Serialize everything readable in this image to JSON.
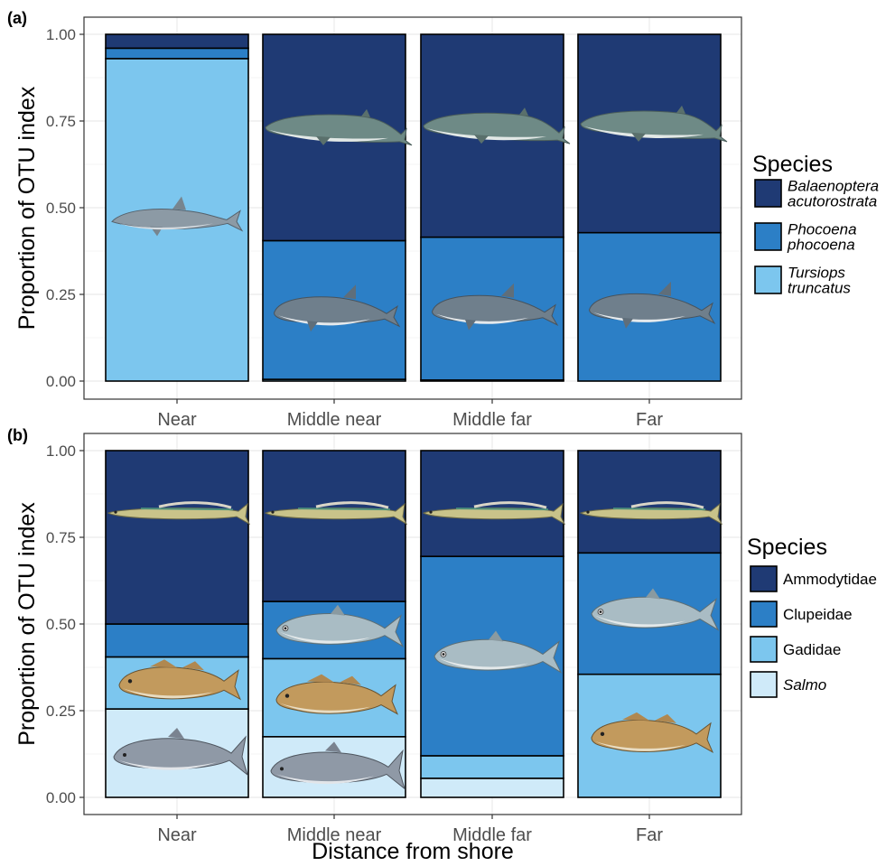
{
  "xlabel": "Distance from shore",
  "colors": {
    "dark": "#1f3a74",
    "mid": "#2c7fc6",
    "light": "#7cc6ee",
    "pale": "#cfeaf9",
    "panel_border": "#333333",
    "grid": "#ebebeb"
  },
  "chart_data": [
    {
      "type": "bar",
      "stacked": true,
      "panel_tag": "(a)",
      "title": "",
      "xlabel": "",
      "ylabel": "Proportion of OTU index",
      "ylim": [
        0,
        1
      ],
      "yticks": [
        "0.00",
        "0.25",
        "0.50",
        "0.75",
        "1.00"
      ],
      "categories": [
        "Near",
        "Middle near",
        "Middle far",
        "Far"
      ],
      "legend_title": "Species",
      "legend_position": "right",
      "series": [
        {
          "name_lines": [
            "Tursiops",
            "truncatus"
          ],
          "italic": true,
          "color": "#7cc6ee",
          "values": [
            0.93,
            0.005,
            0.003,
            0.0
          ]
        },
        {
          "name_lines": [
            "Phocoena",
            "phocoena"
          ],
          "italic": true,
          "color": "#2c7fc6",
          "values": [
            0.03,
            0.4,
            0.412,
            0.428
          ]
        },
        {
          "name_lines": [
            "Balaenoptera",
            "acutorostrata"
          ],
          "italic": true,
          "color": "#1f3a74",
          "values": [
            0.04,
            0.595,
            0.585,
            0.572
          ]
        }
      ],
      "illustrations": [
        {
          "kind": "dolphin-icon",
          "category": 0,
          "series": 0
        },
        {
          "kind": "whale-icon",
          "category": 1,
          "series": 2
        },
        {
          "kind": "whale-icon",
          "category": 2,
          "series": 2
        },
        {
          "kind": "whale-icon",
          "category": 3,
          "series": 2
        },
        {
          "kind": "porpoise-icon",
          "category": 1,
          "series": 1
        },
        {
          "kind": "porpoise-icon",
          "category": 2,
          "series": 1
        },
        {
          "kind": "porpoise-icon",
          "category": 3,
          "series": 1
        }
      ]
    },
    {
      "type": "bar",
      "stacked": true,
      "panel_tag": "(b)",
      "title": "",
      "xlabel": "Distance from shore",
      "ylabel": "Proportion of OTU index",
      "ylim": [
        0,
        1
      ],
      "yticks": [
        "0.00",
        "0.25",
        "0.50",
        "0.75",
        "1.00"
      ],
      "categories": [
        "Near",
        "Middle near",
        "Middle far",
        "Far"
      ],
      "legend_title": "Species",
      "legend_position": "right",
      "series": [
        {
          "name_lines": [
            "Salmo"
          ],
          "italic": true,
          "color": "#cfeaf9",
          "values": [
            0.255,
            0.175,
            0.055,
            0.0
          ]
        },
        {
          "name_lines": [
            "Gadidae"
          ],
          "italic": false,
          "color": "#7cc6ee",
          "values": [
            0.15,
            0.225,
            0.065,
            0.355
          ]
        },
        {
          "name_lines": [
            "Clupeidae"
          ],
          "italic": false,
          "color": "#2c7fc6",
          "values": [
            0.095,
            0.165,
            0.575,
            0.35
          ]
        },
        {
          "name_lines": [
            "Ammodytidae"
          ],
          "italic": false,
          "color": "#1f3a74",
          "values": [
            0.5,
            0.435,
            0.305,
            0.295
          ]
        }
      ],
      "illustrations": [
        {
          "kind": "sandeel-icon",
          "category": 0,
          "series": 3
        },
        {
          "kind": "sandeel-icon",
          "category": 1,
          "series": 3
        },
        {
          "kind": "sandeel-icon",
          "category": 2,
          "series": 3
        },
        {
          "kind": "sandeel-icon",
          "category": 3,
          "series": 3
        },
        {
          "kind": "herring-icon",
          "category": 1,
          "series": 2
        },
        {
          "kind": "herring-icon",
          "category": 2,
          "series": 2
        },
        {
          "kind": "herring-icon",
          "category": 3,
          "series": 2
        },
        {
          "kind": "cod-icon",
          "category": 0,
          "series": 1
        },
        {
          "kind": "cod-icon",
          "category": 1,
          "series": 1
        },
        {
          "kind": "cod-icon",
          "category": 3,
          "series": 1
        },
        {
          "kind": "salmon-icon",
          "category": 0,
          "series": 0
        },
        {
          "kind": "salmon-icon",
          "category": 1,
          "series": 0
        }
      ]
    }
  ]
}
